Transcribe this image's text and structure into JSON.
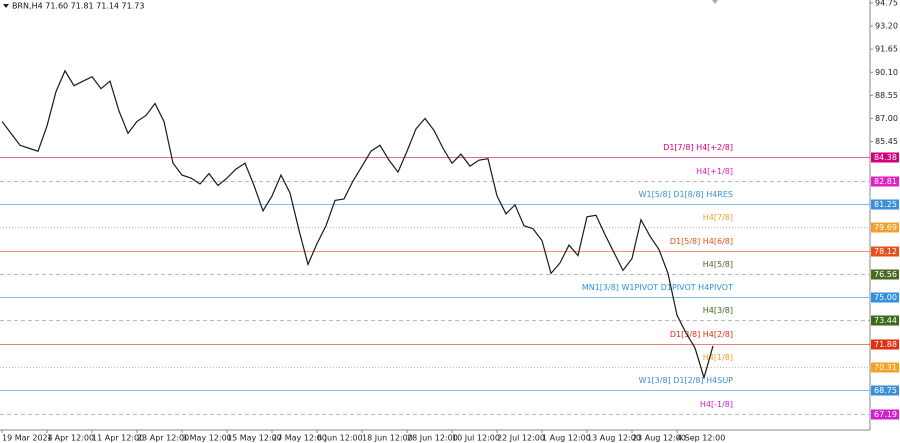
{
  "chart_data": {
    "type": "line",
    "title": "BRN,H4  71.60 71.81 71.14 71.73",
    "categories": [
      "19 Mar 2024",
      null,
      null,
      null,
      null,
      "1 Apr 12:00",
      null,
      null,
      null,
      null,
      "11 Apr 12:00",
      null,
      null,
      null,
      null,
      "23 Apr 12:00",
      null,
      null,
      null,
      null,
      "3 May 12:00",
      null,
      null,
      null,
      null,
      "15 May 12:00",
      null,
      null,
      null,
      null,
      "27 May 12:00",
      null,
      null,
      null,
      null,
      "6 Jun 12:00",
      null,
      null,
      null,
      null,
      "18 Jun 12:00",
      null,
      null,
      null,
      null,
      "28 Jun 12:00",
      null,
      null,
      null,
      null,
      "10 Jul 12:00",
      null,
      null,
      null,
      null,
      "22 Jul 12:00",
      null,
      null,
      null,
      null,
      "1 Aug 12:00",
      null,
      null,
      null,
      null,
      "13 Aug 12:00",
      null,
      null,
      null,
      null,
      "23 Aug 12:00",
      null,
      null,
      null,
      null,
      "4 Sep 12:00",
      null,
      null,
      null,
      null
    ],
    "series": [
      {
        "name": "BRN",
        "color": "#1a1a1a",
        "values": [
          86.8,
          86.0,
          85.2,
          85.0,
          84.8,
          86.5,
          88.8,
          90.2,
          89.2,
          89.5,
          89.8,
          89.0,
          89.5,
          87.5,
          86.0,
          86.8,
          87.2,
          88.0,
          86.8,
          84.0,
          83.2,
          83.0,
          82.6,
          83.3,
          82.5,
          83.0,
          83.6,
          84.0,
          82.5,
          80.8,
          81.8,
          83.2,
          82.0,
          79.5,
          77.2,
          78.6,
          79.8,
          81.5,
          81.6,
          82.8,
          83.8,
          84.8,
          85.2,
          84.2,
          83.4,
          84.8,
          86.3,
          87.0,
          86.2,
          85.0,
          84.0,
          84.6,
          83.8,
          84.2,
          84.3,
          81.8,
          80.6,
          81.2,
          79.8,
          79.6,
          78.8,
          76.6,
          77.3,
          78.5,
          77.8,
          80.4,
          80.5,
          79.2,
          78.0,
          76.8,
          77.6,
          80.2,
          79.1,
          78.2,
          76.6,
          73.8,
          72.6,
          71.6,
          69.6,
          71.73
        ]
      }
    ],
    "ylim": [
      66.09,
      94.95
    ],
    "yticks": [
      94.75,
      {
        "value": 93.2,
        "label": "93.20"
      },
      91.65,
      {
        "value": 90.1,
        "label": "90.10"
      },
      88.55,
      {
        "value": 87,
        "label": "87.00"
      },
      85.45
    ],
    "levels": [
      {
        "value": 84.38,
        "label": "D1[7/8] H4[+2/8]",
        "color": "#d4007c",
        "style": "solid"
      },
      {
        "value": 82.81,
        "label": "H4[+1/8]",
        "color": "#e020c0",
        "style": "dashed"
      },
      {
        "value": 81.25,
        "label": "W1[5/8] D1[8/8] H4RES",
        "color": "#3a8fd8",
        "style": "solid"
      },
      {
        "value": 79.69,
        "label": "H4[7/8]",
        "color": "#f0a030",
        "style": "dotted"
      },
      {
        "value": 78.12,
        "label": "D1[5/8] H4[6/8]",
        "color": "#e8501a",
        "style": "solid"
      },
      {
        "value": 76.56,
        "label": "H4[5/8]",
        "color": "#4a6a20",
        "style": "dashed"
      },
      {
        "value": 75,
        "value_label": "75.00",
        "label": "MN1[3/8] W1PIVOT D1PIVOT H4PIVOT",
        "color": "#2f8fe0",
        "style": "solid"
      },
      {
        "value": 73.44,
        "label": "H4[3/8]",
        "color": "#3a6a1a",
        "style": "dashed"
      },
      {
        "value": 71.88,
        "label": "D1[3/8] H4[2/8]",
        "color": "#e03010",
        "style": "solid"
      },
      {
        "value": 70.31,
        "label": "H4[1/8]",
        "color": "#f5a020",
        "style": "dotted"
      },
      {
        "value": 68.75,
        "label": "W1[3/8] D1[2/8] H4SUP",
        "color": "#3a8fd8",
        "style": "solid"
      },
      {
        "value": 67.19,
        "label": "H4[-1/8]",
        "color": "#d020d0",
        "style": "dashed"
      }
    ]
  }
}
